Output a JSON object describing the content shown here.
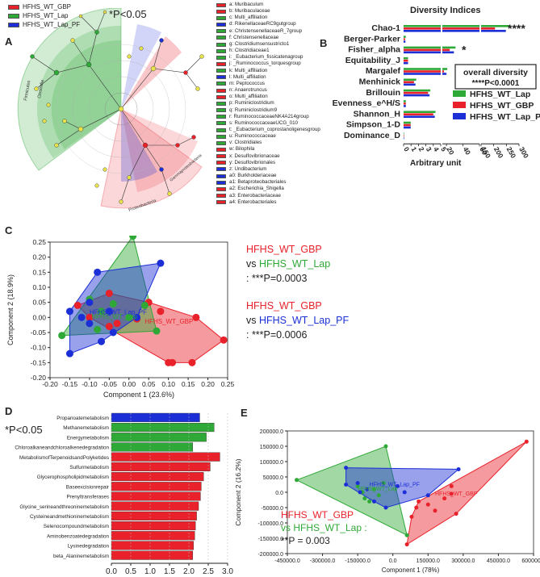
{
  "panelA": {
    "letter": "A",
    "legend": [
      {
        "label": "HFHS_WT_GBP",
        "color": "#e8212a"
      },
      {
        "label": "HFHS_WT_Lap",
        "color": "#2ea836"
      },
      {
        "label": "HFHS_WT_Lap_PF",
        "color": "#1c2fd6"
      }
    ],
    "sig": "*P<0.05",
    "clade_labels": [
      "Firmicutes",
      "Clostridia",
      "Gammaproteobacteria",
      "Proteobacteria"
    ],
    "taxa": [
      {
        "label": "a: Muribaculum",
        "color": "#e8212a"
      },
      {
        "label": "b: Muribaculaceae",
        "color": "#e8212a"
      },
      {
        "label": "c: Multi_affiliation",
        "color": "#2ea836"
      },
      {
        "label": "d: RikenellaceaeRC9gutgroup",
        "color": "#1c2fd6"
      },
      {
        "label": "e: ChristensenellaceaeR_7group",
        "color": "#2ea836"
      },
      {
        "label": "f: Christensenellaceae",
        "color": "#2ea836"
      },
      {
        "label": "g: Clostridiumsensustricto1",
        "color": "#2ea836"
      },
      {
        "label": "h: Clostridiaceae1",
        "color": "#2ea836"
      },
      {
        "label": "i: _Eubacterium_fissicatenagroup",
        "color": "#2ea836"
      },
      {
        "label": "j: _Ruminococcus_torquesgroup",
        "color": "#e8212a"
      },
      {
        "label": "k: Multi_affiliation",
        "color": "#2ea836"
      },
      {
        "label": "l: Multi_affiliation",
        "color": "#1c2fd6"
      },
      {
        "label": "m: Peptococcus",
        "color": "#2ea836"
      },
      {
        "label": "n: Anaerotruncus",
        "color": "#e8212a"
      },
      {
        "label": "o: Multi_affiliation",
        "color": "#e8212a"
      },
      {
        "label": "p: Ruminiclostridium",
        "color": "#2ea836"
      },
      {
        "label": "q: Ruminiclostridium9",
        "color": "#2ea836"
      },
      {
        "label": "r: RuminococcaceaeNK4A214group",
        "color": "#2ea836"
      },
      {
        "label": "s: RuminococcaceaeUCG_010",
        "color": "#2ea836"
      },
      {
        "label": "t: _Eubacterium_coprostanoligenesgroup",
        "color": "#2ea836"
      },
      {
        "label": "u: Ruminococcaceae",
        "color": "#2ea836"
      },
      {
        "label": "v: Clostridiales",
        "color": "#2ea836"
      },
      {
        "label": "w: Bilophila",
        "color": "#e8212a"
      },
      {
        "label": "x: Desulfovibrionaceae",
        "color": "#e8212a"
      },
      {
        "label": "y: Desulfovibrionales",
        "color": "#e8212a"
      },
      {
        "label": "z: Undibacterium",
        "color": "#1c2fd6"
      },
      {
        "label": "a0: Burkholderiaceae",
        "color": "#1c2fd6"
      },
      {
        "label": "a1: Betaproteobacteriales",
        "color": "#1c2fd6"
      },
      {
        "label": "a2: Escherichia_Shigella",
        "color": "#e8212a"
      },
      {
        "label": "a3: Enterobacteriaceae",
        "color": "#e8212a"
      },
      {
        "label": "a4: Enterobacteriales",
        "color": "#e8212a"
      }
    ]
  },
  "panelB": {
    "letter": "B",
    "chart_data": {
      "type": "bar",
      "title": "Diversity Indices",
      "xlabel": "Arbitrary unit",
      "ylabel": "",
      "categories": [
        "Chao-1",
        "Berger-Parker",
        "Fisher_alpha",
        "Equitability_J",
        "Margalef",
        "Menhinick",
        "Brillouin",
        "Evenness_e^H/S",
        "Shannon_H",
        "Simpson_1-D",
        "Dominance_D"
      ],
      "series": [
        {
          "name": "HFHS_WT_Lap",
          "color": "#2ea836",
          "values": [
            262,
            0.3,
            31,
            0.6,
            21,
            1.7,
            3.6,
            0.3,
            4.3,
            0.96,
            0.04
          ]
        },
        {
          "name": "HFHS_WT_GBP",
          "color": "#e8212a",
          "values": [
            205,
            0.2,
            24,
            0.6,
            17,
            1.4,
            3.3,
            0.3,
            4.0,
            0.95,
            0.05
          ]
        },
        {
          "name": "HFHS_WT_Lap_PF",
          "color": "#1c2fd6",
          "values": [
            248,
            0.25,
            29,
            0.6,
            20,
            1.6,
            3.5,
            0.3,
            4.2,
            0.96,
            0.04
          ]
        }
      ],
      "x_ticks": [
        "0",
        "1",
        "2",
        "3",
        "4",
        "5",
        "20",
        "40",
        "60",
        "150",
        "200",
        "250",
        "300"
      ],
      "annotations": [
        {
          "category": "Chao-1",
          "text": "****"
        },
        {
          "category": "Fisher_alpha",
          "text": "*"
        }
      ],
      "box_title": "overall diversity",
      "box_text": "****P<0.0001"
    }
  },
  "panelC": {
    "letter": "C",
    "chart_data": {
      "type": "scatter",
      "xlabel": "Component 1 (23.6%)",
      "ylabel": "Component 2 (18.9%)",
      "xlim": [
        -0.2,
        0.25
      ],
      "ylim": [
        -0.2,
        0.25
      ],
      "x_ticks": [
        "-0.20",
        "-0.15",
        "-0.10",
        "-0.05",
        "0.00",
        "0.05",
        "0.10",
        "0.15",
        "0.20",
        "0.25"
      ],
      "y_ticks": [
        "0.25",
        "0.20",
        "0.15",
        "0.10",
        "0.05",
        "0.00",
        "-0.05",
        "-0.10",
        "-0.15",
        "-0.20"
      ],
      "series": [
        {
          "name": "HFHS_WT_GBP",
          "color": "#e8212a",
          "points": [
            [
              0.24,
              -0.075
            ],
            [
              0.11,
              -0.15
            ],
            [
              0.1,
              -0.15
            ],
            [
              0.17,
              0.0
            ],
            [
              0.16,
              -0.15
            ],
            [
              0.05,
              0.05
            ],
            [
              0.02,
              -0.005
            ],
            [
              -0.03,
              -0.02
            ],
            [
              -0.1,
              0.0
            ],
            [
              -0.13,
              0.04
            ],
            [
              -0.05,
              0.08
            ],
            [
              0.08,
              0.02
            ],
            [
              -0.05,
              -0.03
            ]
          ]
        },
        {
          "name": "HFHS_WT_Lap",
          "color": "#2ea836",
          "points": [
            [
              0.01,
              0.27
            ],
            [
              -0.17,
              -0.06
            ],
            [
              -0.1,
              0.06
            ],
            [
              -0.04,
              0.045
            ],
            [
              0.07,
              -0.045
            ],
            [
              -0.08,
              -0.04
            ],
            [
              0.04,
              0.04
            ],
            [
              0.0,
              0.0
            ],
            [
              -0.07,
              0.02
            ]
          ]
        },
        {
          "name": "HFHS_WT_Lap_PF",
          "color": "#1c2fd6",
          "points": [
            [
              0.08,
              0.18
            ],
            [
              -0.08,
              0.15
            ],
            [
              -0.15,
              -0.12
            ],
            [
              -0.07,
              -0.08
            ],
            [
              -0.04,
              -0.05
            ],
            [
              -0.15,
              0.02
            ],
            [
              -0.12,
              0.0
            ],
            [
              -0.1,
              -0.02
            ],
            [
              -0.05,
              0.02
            ],
            [
              0.02,
              0.0
            ],
            [
              -0.1,
              0.05
            ]
          ]
        }
      ],
      "centroid_labels": [
        {
          "text": "HFHS_WT_Lap_PF",
          "color": "#1c2fd6",
          "x": -0.1,
          "y": 0.01
        },
        {
          "text": "HFHS_WT_Lap",
          "color": "#2ea836",
          "x": -0.095,
          "y": -0.005
        },
        {
          "text": "HFHS_WT_GBP",
          "color": "#e8212a",
          "x": 0.04,
          "y": -0.02
        }
      ],
      "comparisons": [
        {
          "a": "HFHS_WT_GBP",
          "b": "HFHS_WT_Lap",
          "p": ": ***P=0.0003",
          "vs": "vs"
        },
        {
          "a": "HFHS_WT_GBP",
          "b": "HFHS_WT_Lap_PF",
          "p": ": ***P=0.0006",
          "vs": "vs"
        }
      ]
    }
  },
  "panelD": {
    "letter": "D",
    "sig": "*P<0.05",
    "chart_data": {
      "type": "bar",
      "xlabel": "LDA SCORE (log 10)",
      "ylabel": "",
      "xlim": [
        0,
        3.0
      ],
      "x_ticks": [
        "0.0",
        "0.5",
        "1.0",
        "1.5",
        "2.0",
        "2.5",
        "3.0"
      ],
      "categories": [
        "Propanoatemetabolism",
        "Methanemetabolism",
        "Energymetabolism",
        "Chloroalkaneandchloroalkenedegradation",
        "MetabolismofTerpenoidsandPolyketides",
        "Sulfurmetabolism",
        "Glycerophospholipidmetabolism",
        "Baseexcisionrepair",
        "Prenyltransferases",
        "Glycine_serineandthreoninemetabolism",
        "Cysteineandmethioninemetabolism",
        "Selenocompoundmetabolism",
        "Aminobenzoatedegradation",
        "Lysinedegradation",
        "beta_Alaninemetabolism"
      ],
      "values": [
        2.28,
        2.65,
        2.45,
        2.1,
        2.8,
        2.55,
        2.38,
        2.32,
        2.3,
        2.25,
        2.2,
        2.17,
        2.15,
        2.12,
        2.1
      ],
      "colors": [
        "#1c2fd6",
        "#2ea836",
        "#2ea836",
        "#2ea836",
        "#e8212a",
        "#e8212a",
        "#e8212a",
        "#e8212a",
        "#e8212a",
        "#e8212a",
        "#e8212a",
        "#e8212a",
        "#e8212a",
        "#e8212a",
        "#e8212a"
      ]
    }
  },
  "panelE": {
    "letter": "E",
    "chart_data": {
      "type": "scatter",
      "xlabel": "Component 1 (78%)",
      "ylabel": "Component 2 (16.2%)",
      "xlim": [
        -450000,
        600000
      ],
      "ylim": [
        -200000,
        200000
      ],
      "x_ticks": [
        "-450000.0",
        "-300000.0",
        "-150000.0",
        "0.0",
        "150000.0",
        "300000.0",
        "450000.0",
        "600000.0"
      ],
      "y_ticks": [
        "200000.0",
        "150000.0",
        "100000.0",
        "50000.0",
        "0.0",
        "-50000.0",
        "-100000.0",
        "-150000.0",
        "-200000.0"
      ],
      "series": [
        {
          "name": "HFHS_WT_GBP",
          "color": "#e8212a",
          "points": [
            [
              570000,
              165000
            ],
            [
              60000,
              -170000
            ],
            [
              270000,
              -70000
            ],
            [
              250000,
              -5000
            ],
            [
              150000,
              -40000
            ],
            [
              100000,
              -50000
            ],
            [
              180000,
              -60000
            ],
            [
              110000,
              -30000
            ],
            [
              220000,
              -20000
            ],
            [
              80000,
              -80000
            ],
            [
              250000,
              20000
            ]
          ]
        },
        {
          "name": "HFHS_WT_Lap",
          "color": "#2ea836",
          "points": [
            [
              -410000,
              40000
            ],
            [
              -30000,
              150000
            ],
            [
              60000,
              -140000
            ],
            [
              -100000,
              -30000
            ],
            [
              -150000,
              20000
            ],
            [
              -130000,
              0
            ],
            [
              -60000,
              -10000
            ],
            [
              -80000,
              10000
            ],
            [
              -120000,
              -20000
            ],
            [
              -40000,
              30000
            ]
          ]
        },
        {
          "name": "HFHS_WT_Lap_PF",
          "color": "#1c2fd6",
          "points": [
            [
              -200000,
              25000
            ],
            [
              -200000,
              80000
            ],
            [
              280000,
              75000
            ],
            [
              -30000,
              -50000
            ],
            [
              -150000,
              30000
            ],
            [
              -110000,
              10000
            ],
            [
              20000,
              20000
            ],
            [
              -80000,
              -30000
            ],
            [
              50000,
              0
            ],
            [
              150000,
              -10000
            ],
            [
              -140000,
              0
            ]
          ]
        }
      ],
      "centroid_labels": [
        {
          "text": "HFHS_WT_Lap_PF",
          "color": "#1c2fd6",
          "x": -100000,
          "y": 20000
        },
        {
          "text": "HFHS_WT_Lap",
          "color": "#2ea836",
          "x": -150000,
          "y": 5000
        },
        {
          "text": "HFHS_WT_GBP",
          "color": "#e8212a",
          "x": 180000,
          "y": -10000
        }
      ],
      "comparison": {
        "a": "HFHS_WT_GBP",
        "b": "vs HFHS_WT_Lap :",
        "p": "**P = 0.003"
      }
    }
  }
}
